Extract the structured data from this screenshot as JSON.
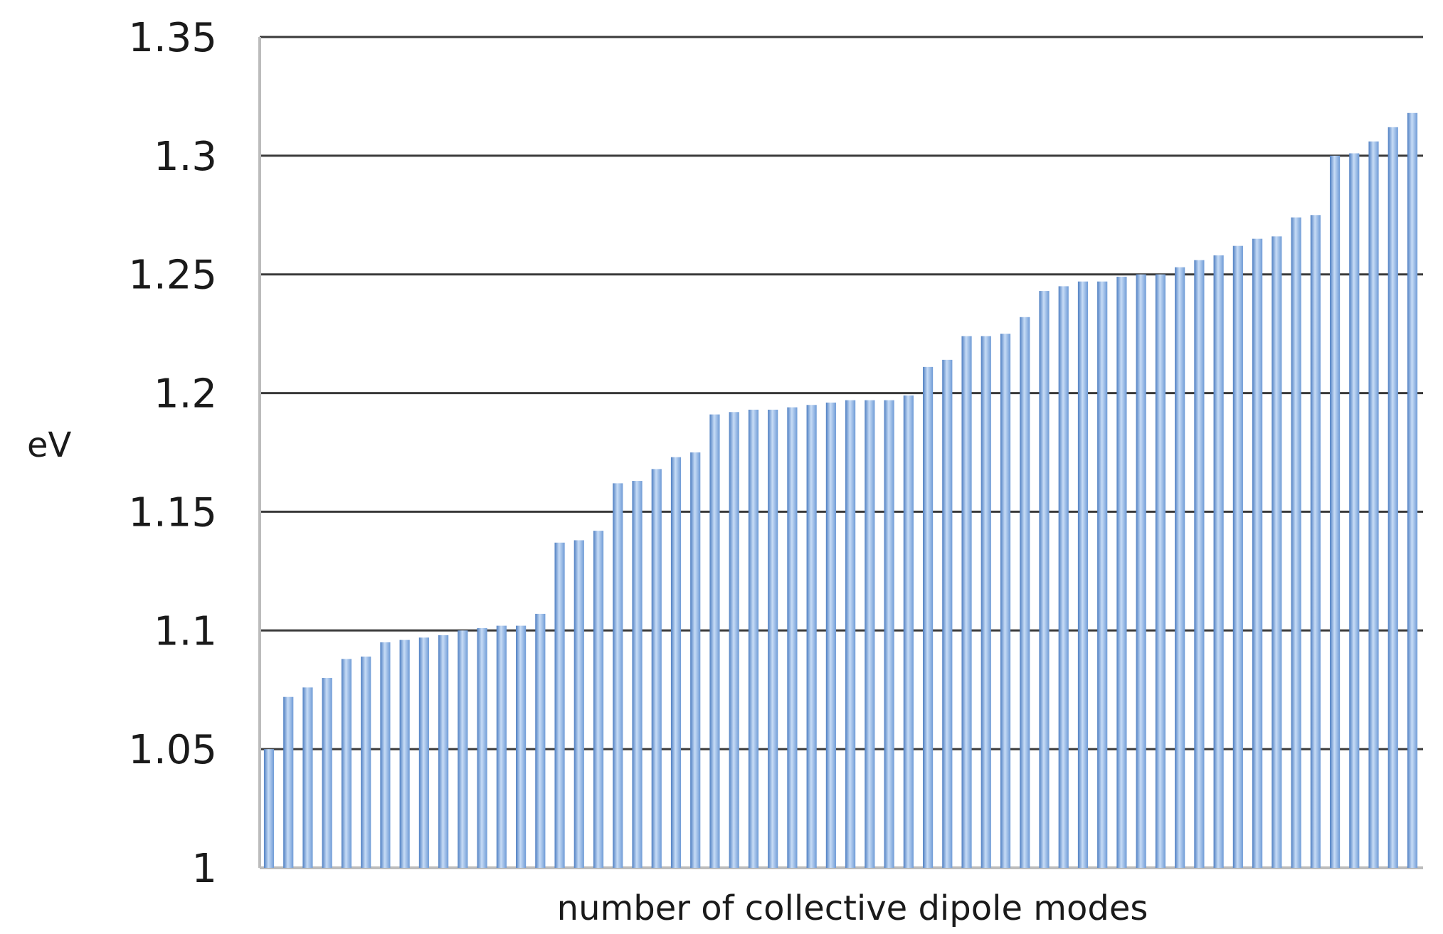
{
  "chart_data": {
    "type": "bar",
    "title": "",
    "xlabel": "number of collective dipole modes",
    "ylabel": "eV",
    "ylim": [
      1,
      1.35
    ],
    "yticks": [
      "1",
      "1.05",
      "1.1",
      "1.15",
      "1.2",
      "1.25",
      "1.3",
      "1.35"
    ],
    "grid": true,
    "legend": "none",
    "bar_color": "#7aa6df",
    "bar_highlight": "#c7dcf6",
    "bar_shadow": "#4f7fc2",
    "categories": [
      "1",
      "2",
      "3",
      "4",
      "5",
      "6",
      "7",
      "8",
      "9",
      "10",
      "11",
      "12",
      "13",
      "14",
      "15",
      "16",
      "17",
      "18",
      "19",
      "20",
      "21",
      "22",
      "23",
      "24",
      "25",
      "26",
      "27",
      "28",
      "29",
      "30",
      "31",
      "32",
      "33",
      "34",
      "35",
      "36",
      "37",
      "38",
      "39",
      "40",
      "41",
      "42",
      "43",
      "44",
      "45",
      "46",
      "47",
      "48",
      "49",
      "50",
      "51",
      "52",
      "53",
      "54",
      "55",
      "56",
      "57",
      "58",
      "59",
      "60"
    ],
    "values": [
      1.05,
      1.072,
      1.076,
      1.08,
      1.088,
      1.089,
      1.095,
      1.096,
      1.097,
      1.098,
      1.1,
      1.101,
      1.102,
      1.102,
      1.107,
      1.137,
      1.138,
      1.142,
      1.162,
      1.163,
      1.168,
      1.173,
      1.175,
      1.191,
      1.192,
      1.193,
      1.193,
      1.194,
      1.195,
      1.196,
      1.197,
      1.197,
      1.197,
      1.199,
      1.211,
      1.214,
      1.224,
      1.224,
      1.225,
      1.232,
      1.243,
      1.245,
      1.247,
      1.247,
      1.249,
      1.25,
      1.25,
      1.253,
      1.256,
      1.258,
      1.262,
      1.265,
      1.266,
      1.274,
      1.275,
      1.3,
      1.301,
      1.306,
      1.312,
      1.318
    ]
  }
}
